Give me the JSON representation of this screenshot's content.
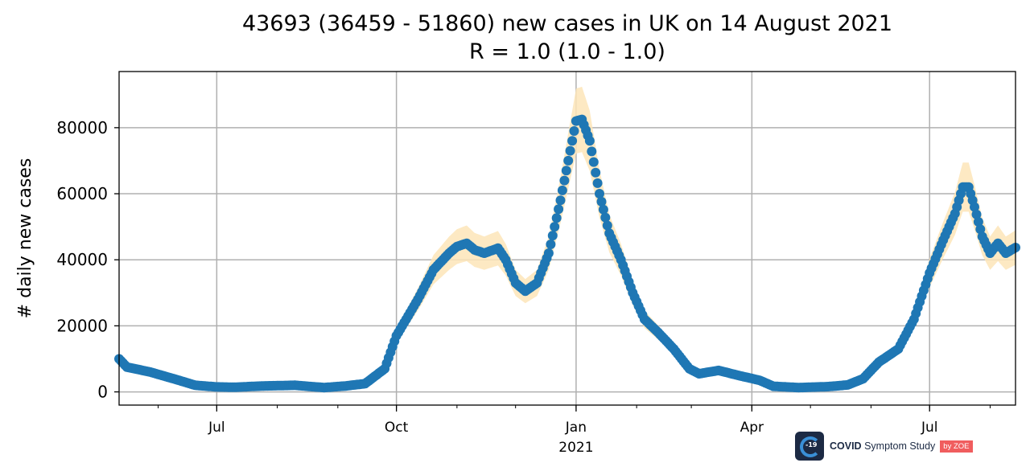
{
  "chart_data": {
    "type": "line",
    "title": "43693 (36459 - 51860) new cases in UK on 14 August 2021",
    "subtitle": "R = 1.0 (1.0 - 1.0)",
    "xlabel": "",
    "ylabel": "# daily new cases",
    "x_range": [
      "2020-05-12",
      "2021-08-14"
    ],
    "ylim": [
      -4000,
      97000
    ],
    "yticks": [
      0,
      20000,
      40000,
      60000,
      80000
    ],
    "ytick_labels": [
      "0",
      "20000",
      "40000",
      "60000",
      "80000"
    ],
    "xticks": [
      {
        "date": "2020-07-01",
        "label": "Jul"
      },
      {
        "date": "2020-10-01",
        "label": "Oct"
      },
      {
        "date": "2021-01-01",
        "label": "Jan",
        "sublabel": "2021"
      },
      {
        "date": "2021-04-01",
        "label": "Apr"
      },
      {
        "date": "2021-07-01",
        "label": "Jul"
      }
    ],
    "grid": true,
    "series": [
      {
        "name": "",
        "marker": "circle",
        "color": "#1f77b4",
        "band_color": "#fde5b8",
        "points": [
          [
            "2020-05-12",
            10000
          ],
          [
            "2020-05-16",
            7500
          ],
          [
            "2020-05-28",
            6000
          ],
          [
            "2020-06-10",
            3800
          ],
          [
            "2020-06-20",
            2000
          ],
          [
            "2020-07-01",
            1500
          ],
          [
            "2020-07-10",
            1400
          ],
          [
            "2020-07-25",
            1800
          ],
          [
            "2020-08-10",
            2000
          ],
          [
            "2020-08-25",
            1300
          ],
          [
            "2020-09-05",
            1800
          ],
          [
            "2020-09-15",
            2500
          ],
          [
            "2020-09-25",
            7000
          ],
          [
            "2020-10-01",
            17000
          ],
          [
            "2020-10-05",
            21000
          ],
          [
            "2020-10-12",
            28000
          ],
          [
            "2020-10-20",
            37000
          ],
          [
            "2020-10-28",
            42000
          ],
          [
            "2020-11-01",
            44000
          ],
          [
            "2020-11-06",
            45000
          ],
          [
            "2020-11-10",
            43000
          ],
          [
            "2020-11-15",
            42000
          ],
          [
            "2020-11-22",
            43500
          ],
          [
            "2020-11-26",
            40000
          ],
          [
            "2020-12-01",
            33000
          ],
          [
            "2020-12-06",
            30500
          ],
          [
            "2020-12-12",
            33000
          ],
          [
            "2020-12-18",
            42000
          ],
          [
            "2020-12-24",
            58000
          ],
          [
            "2020-12-30",
            76000
          ],
          [
            "2021-01-01",
            82000
          ],
          [
            "2021-01-04",
            82500
          ],
          [
            "2021-01-08",
            76000
          ],
          [
            "2021-01-13",
            60000
          ],
          [
            "2021-01-18",
            48000
          ],
          [
            "2021-01-24",
            40000
          ],
          [
            "2021-01-30",
            30000
          ],
          [
            "2021-02-05",
            22000
          ],
          [
            "2021-02-12",
            18000
          ],
          [
            "2021-02-20",
            13000
          ],
          [
            "2021-02-28",
            7000
          ],
          [
            "2021-03-05",
            5500
          ],
          [
            "2021-03-15",
            6500
          ],
          [
            "2021-03-25",
            5000
          ],
          [
            "2021-04-05",
            3500
          ],
          [
            "2021-04-12",
            1700
          ],
          [
            "2021-04-25",
            1300
          ],
          [
            "2021-05-10",
            1600
          ],
          [
            "2021-05-20",
            2100
          ],
          [
            "2021-05-28",
            4000
          ],
          [
            "2021-06-05",
            9000
          ],
          [
            "2021-06-15",
            13000
          ],
          [
            "2021-06-23",
            22000
          ],
          [
            "2021-07-01",
            36000
          ],
          [
            "2021-07-08",
            46000
          ],
          [
            "2021-07-14",
            54000
          ],
          [
            "2021-07-18",
            62000
          ],
          [
            "2021-07-21",
            62000
          ],
          [
            "2021-07-24",
            56000
          ],
          [
            "2021-07-28",
            47000
          ],
          [
            "2021-08-01",
            42000
          ],
          [
            "2021-08-05",
            45000
          ],
          [
            "2021-08-09",
            42000
          ],
          [
            "2021-08-14",
            43693
          ]
        ],
        "band_half_width_fraction": 0.12
      }
    ]
  },
  "branding": {
    "mark_text": "-19",
    "name_bold": "COVID",
    "name_rest": " Symptom Study",
    "badge_prefix": "by ",
    "badge_name": "ZOE"
  }
}
